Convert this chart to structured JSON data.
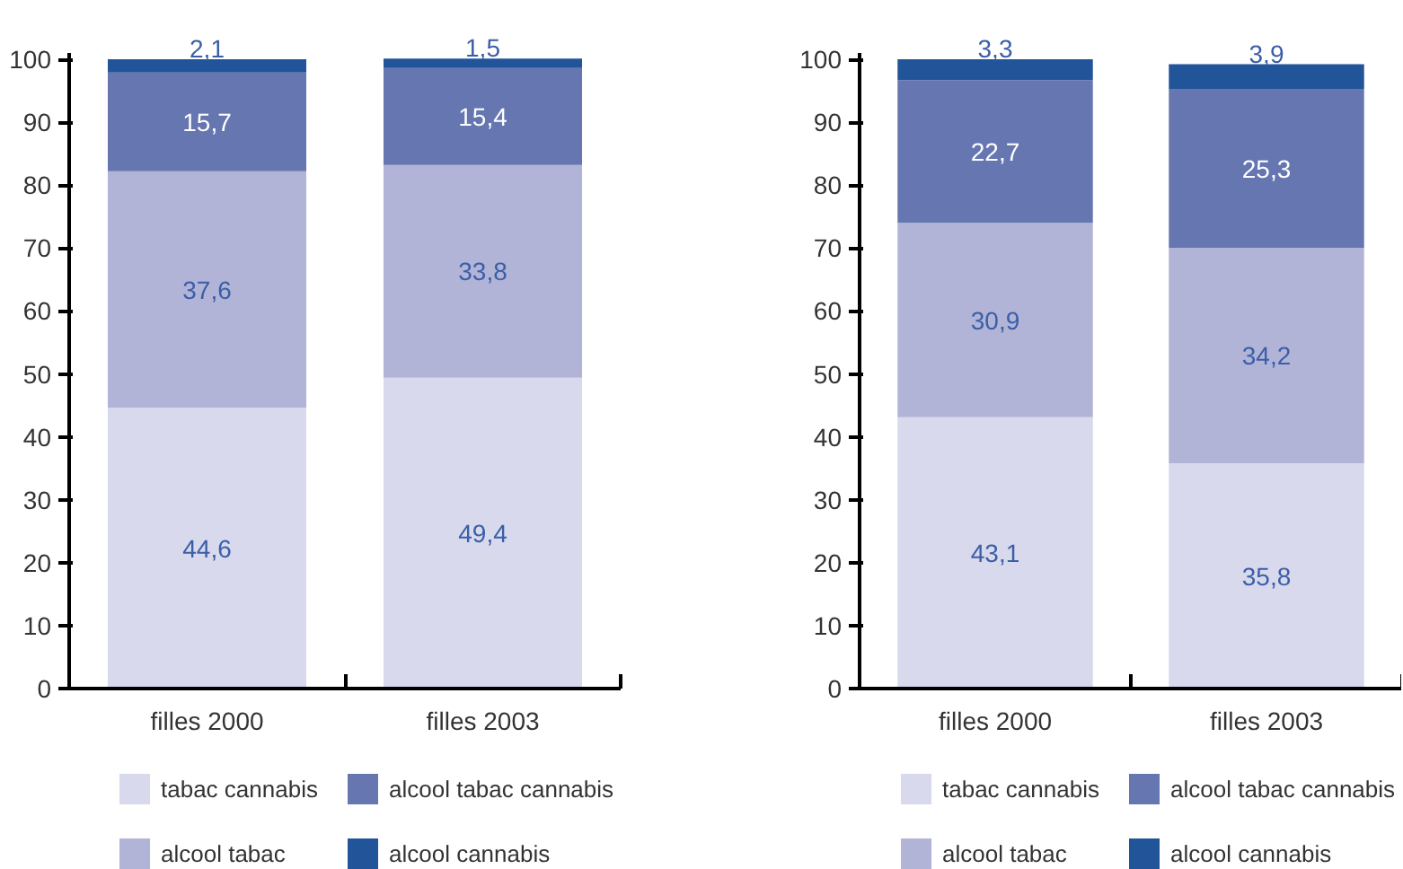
{
  "chart_data": [
    {
      "type": "bar",
      "stacked": true,
      "categories": [
        "filles 2000",
        "filles 2003"
      ],
      "series": [
        {
          "name": "tabac cannabis",
          "color": "#d8d9ec",
          "values": [
            44.6,
            49.4
          ],
          "value_labels": [
            "44,6",
            "49,4"
          ]
        },
        {
          "name": "alcool tabac",
          "color": "#b1b4d6",
          "values": [
            37.6,
            33.8
          ],
          "value_labels": [
            "37,6",
            "33,8"
          ]
        },
        {
          "name": "alcool tabac cannabis",
          "color": "#6676b0",
          "values": [
            15.7,
            15.4
          ],
          "value_labels": [
            "15,7",
            "15,4"
          ]
        },
        {
          "name": "alcool cannabis",
          "color": "#22549a",
          "values": [
            2.1,
            1.5
          ],
          "value_labels": [
            "2,1",
            "1,5"
          ]
        }
      ],
      "ylim": [
        0,
        101
      ],
      "yticks": [
        0,
        10,
        20,
        30,
        40,
        50,
        60,
        70,
        80,
        90,
        100
      ],
      "grid": false,
      "legend": "bottom"
    },
    {
      "type": "bar",
      "stacked": true,
      "categories": [
        "filles 2000",
        "filles 2003"
      ],
      "series": [
        {
          "name": "tabac cannabis",
          "color": "#d8d9ec",
          "values": [
            43.1,
            35.8
          ],
          "value_labels": [
            "43,1",
            "35,8"
          ]
        },
        {
          "name": "alcool tabac",
          "color": "#b1b4d6",
          "values": [
            30.9,
            34.2
          ],
          "value_labels": [
            "30,9",
            "34,2"
          ]
        },
        {
          "name": "alcool tabac cannabis",
          "color": "#6676b0",
          "values": [
            22.7,
            25.3
          ],
          "value_labels": [
            "22,7",
            "25,3"
          ]
        },
        {
          "name": "alcool cannabis",
          "color": "#22549a",
          "values": [
            3.3,
            3.9
          ],
          "value_labels": [
            "3,3",
            "3,9"
          ]
        }
      ],
      "ylim": [
        0,
        101
      ],
      "yticks": [
        0,
        10,
        20,
        30,
        40,
        50,
        60,
        70,
        80,
        90,
        100
      ],
      "grid": false,
      "legend": "bottom"
    }
  ]
}
